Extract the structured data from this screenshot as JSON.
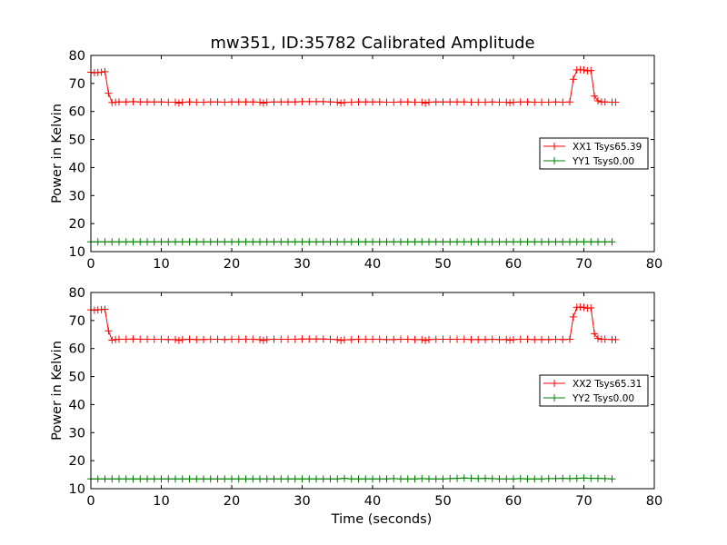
{
  "figure": {
    "title": "mw351, ID:35782 Calibrated Amplitude",
    "background": "#ffffff"
  },
  "chart_data": [
    {
      "type": "line",
      "title": "mw351, ID:35782 Calibrated Amplitude",
      "xlabel": "",
      "ylabel": "Power in Kelvin",
      "xlim": [
        0,
        80
      ],
      "ylim": [
        10,
        80
      ],
      "xticks": [
        0,
        10,
        20,
        30,
        40,
        50,
        60,
        70,
        80
      ],
      "yticks": [
        10,
        20,
        30,
        40,
        50,
        60,
        70,
        80
      ],
      "xtick_labels": [
        "0",
        "10",
        "20",
        "30",
        "40",
        "50",
        "60",
        "70",
        "80"
      ],
      "ytick_labels": [
        "10",
        "20",
        "30",
        "40",
        "50",
        "60",
        "70",
        "80"
      ],
      "grid": false,
      "marker": "+",
      "legend_position": "center-right",
      "series": [
        {
          "name": "XX1 Tsys65.39",
          "color": "#ff0000",
          "x": [
            0,
            0.5,
            1,
            1.5,
            2,
            2.5,
            3,
            3.5,
            4,
            5,
            6,
            7,
            8,
            9,
            10,
            11,
            12,
            12.5,
            13,
            14,
            15,
            16,
            17,
            18,
            19,
            20,
            21,
            22,
            23,
            24,
            24.5,
            25,
            26,
            27,
            28,
            29,
            30,
            31,
            32,
            33,
            34,
            35,
            35.5,
            36,
            37,
            38,
            39,
            40,
            41,
            42,
            43,
            44,
            45,
            46,
            47,
            47.5,
            48,
            49,
            50,
            51,
            52,
            53,
            54,
            55,
            56,
            57,
            58,
            59,
            59.5,
            60,
            61,
            62,
            63,
            64,
            65,
            66,
            67,
            68,
            68.5,
            69,
            69.5,
            70,
            70.5,
            71,
            71.5,
            72,
            72.5,
            73,
            74,
            74.5
          ],
          "y": [
            74,
            73.8,
            73.9,
            74,
            74.2,
            66.5,
            63.2,
            63.3,
            63.4,
            63.4,
            63.5,
            63.4,
            63.4,
            63.4,
            63.4,
            63.3,
            63.3,
            63.0,
            63.3,
            63.4,
            63.3,
            63.3,
            63.4,
            63.4,
            63.3,
            63.4,
            63.4,
            63.4,
            63.4,
            63.3,
            63.0,
            63.3,
            63.4,
            63.4,
            63.4,
            63.4,
            63.5,
            63.5,
            63.5,
            63.5,
            63.4,
            63.3,
            63.0,
            63.2,
            63.3,
            63.4,
            63.4,
            63.4,
            63.4,
            63.3,
            63.3,
            63.4,
            63.4,
            63.3,
            63.3,
            63.0,
            63.3,
            63.4,
            63.4,
            63.4,
            63.4,
            63.4,
            63.3,
            63.3,
            63.3,
            63.4,
            63.3,
            63.3,
            63.1,
            63.3,
            63.4,
            63.4,
            63.3,
            63.3,
            63.3,
            63.4,
            63.3,
            63.4,
            71.5,
            74.8,
            74.9,
            74.8,
            74.5,
            74.6,
            65.5,
            63.8,
            63.4,
            63.4,
            63.3,
            63.3
          ]
        },
        {
          "name": "YY1 Tsys0.00",
          "color": "#008000",
          "x": [
            0,
            1,
            2,
            3,
            4,
            5,
            6,
            7,
            8,
            9,
            10,
            11,
            12,
            13,
            14,
            15,
            16,
            17,
            18,
            19,
            20,
            21,
            22,
            23,
            24,
            25,
            26,
            27,
            28,
            29,
            30,
            31,
            32,
            33,
            34,
            35,
            36,
            37,
            38,
            39,
            40,
            41,
            42,
            43,
            44,
            45,
            46,
            47,
            48,
            49,
            50,
            51,
            52,
            53,
            54,
            55,
            56,
            57,
            58,
            59,
            60,
            61,
            62,
            63,
            64,
            65,
            66,
            67,
            68,
            69,
            70,
            71,
            72,
            73,
            74
          ],
          "y": [
            13.5,
            13.5,
            13.5,
            13.5,
            13.5,
            13.5,
            13.5,
            13.5,
            13.5,
            13.5,
            13.5,
            13.5,
            13.5,
            13.5,
            13.5,
            13.5,
            13.5,
            13.5,
            13.5,
            13.5,
            13.5,
            13.5,
            13.5,
            13.5,
            13.5,
            13.5,
            13.5,
            13.5,
            13.5,
            13.5,
            13.5,
            13.5,
            13.5,
            13.5,
            13.5,
            13.5,
            13.5,
            13.5,
            13.5,
            13.5,
            13.5,
            13.5,
            13.5,
            13.5,
            13.5,
            13.5,
            13.5,
            13.5,
            13.5,
            13.5,
            13.5,
            13.5,
            13.5,
            13.5,
            13.5,
            13.5,
            13.5,
            13.5,
            13.5,
            13.5,
            13.5,
            13.5,
            13.5,
            13.5,
            13.5,
            13.5,
            13.5,
            13.5,
            13.5,
            13.5,
            13.5,
            13.5,
            13.5,
            13.5,
            13.5
          ]
        }
      ]
    },
    {
      "type": "line",
      "title": "",
      "xlabel": "Time (seconds)",
      "ylabel": "Power in Kelvin",
      "xlim": [
        0,
        80
      ],
      "ylim": [
        10,
        80
      ],
      "xticks": [
        0,
        10,
        20,
        30,
        40,
        50,
        60,
        70,
        80
      ],
      "yticks": [
        10,
        20,
        30,
        40,
        50,
        60,
        70,
        80
      ],
      "xtick_labels": [
        "0",
        "10",
        "20",
        "30",
        "40",
        "50",
        "60",
        "70",
        "80"
      ],
      "ytick_labels": [
        "10",
        "20",
        "30",
        "40",
        "50",
        "60",
        "70",
        "80"
      ],
      "grid": false,
      "marker": "+",
      "legend_position": "center-right",
      "series": [
        {
          "name": "XX2 Tsys65.31",
          "color": "#ff0000",
          "x": [
            0,
            0.5,
            1,
            1.5,
            2,
            2.5,
            3,
            3.5,
            4,
            5,
            6,
            7,
            8,
            9,
            10,
            11,
            12,
            12.5,
            13,
            14,
            15,
            16,
            17,
            18,
            19,
            20,
            21,
            22,
            23,
            24,
            24.5,
            25,
            26,
            27,
            28,
            29,
            30,
            31,
            32,
            33,
            34,
            35,
            35.5,
            36,
            37,
            38,
            39,
            40,
            41,
            42,
            43,
            44,
            45,
            46,
            47,
            47.5,
            48,
            49,
            50,
            51,
            52,
            53,
            54,
            55,
            56,
            57,
            58,
            59,
            59.5,
            60,
            61,
            62,
            63,
            64,
            65,
            66,
            67,
            68,
            68.5,
            69,
            69.5,
            70,
            70.5,
            71,
            71.5,
            72,
            72.5,
            73,
            74,
            74.5
          ],
          "y": [
            73.8,
            73.7,
            73.8,
            73.9,
            74.0,
            66.3,
            63.0,
            63.2,
            63.3,
            63.3,
            63.4,
            63.3,
            63.3,
            63.3,
            63.3,
            63.2,
            63.2,
            62.9,
            63.2,
            63.3,
            63.2,
            63.2,
            63.3,
            63.3,
            63.2,
            63.3,
            63.3,
            63.3,
            63.3,
            63.2,
            62.9,
            63.2,
            63.3,
            63.3,
            63.3,
            63.3,
            63.4,
            63.4,
            63.4,
            63.4,
            63.3,
            63.2,
            62.9,
            63.1,
            63.2,
            63.3,
            63.3,
            63.3,
            63.3,
            63.2,
            63.2,
            63.3,
            63.3,
            63.2,
            63.2,
            62.9,
            63.2,
            63.3,
            63.3,
            63.3,
            63.3,
            63.3,
            63.2,
            63.2,
            63.2,
            63.3,
            63.2,
            63.2,
            63.0,
            63.2,
            63.3,
            63.3,
            63.2,
            63.2,
            63.2,
            63.3,
            63.2,
            63.3,
            71.3,
            74.7,
            74.8,
            74.7,
            74.4,
            74.5,
            65.3,
            63.6,
            63.3,
            63.3,
            63.2,
            63.2
          ]
        },
        {
          "name": "YY2 Tsys0.00",
          "color": "#008000",
          "x": [
            0,
            1,
            2,
            3,
            4,
            5,
            6,
            7,
            8,
            9,
            10,
            11,
            12,
            13,
            14,
            15,
            16,
            17,
            18,
            19,
            20,
            21,
            22,
            23,
            24,
            25,
            26,
            27,
            28,
            29,
            30,
            31,
            32,
            33,
            34,
            35,
            36,
            37,
            38,
            39,
            40,
            41,
            42,
            43,
            44,
            45,
            46,
            47,
            48,
            49,
            50,
            51,
            52,
            53,
            54,
            55,
            56,
            57,
            58,
            59,
            60,
            61,
            62,
            63,
            64,
            65,
            66,
            67,
            68,
            69,
            70,
            71,
            72,
            73,
            74
          ],
          "y": [
            13.5,
            13.5,
            13.5,
            13.5,
            13.5,
            13.5,
            13.5,
            13.5,
            13.5,
            13.5,
            13.5,
            13.5,
            13.5,
            13.5,
            13.5,
            13.5,
            13.5,
            13.5,
            13.5,
            13.5,
            13.5,
            13.5,
            13.5,
            13.5,
            13.5,
            13.5,
            13.5,
            13.5,
            13.5,
            13.5,
            13.5,
            13.5,
            13.5,
            13.5,
            13.5,
            13.5,
            13.7,
            13.5,
            13.5,
            13.5,
            13.5,
            13.5,
            13.5,
            13.6,
            13.5,
            13.5,
            13.5,
            13.6,
            13.5,
            13.5,
            13.5,
            13.6,
            13.7,
            13.8,
            13.7,
            13.6,
            13.7,
            13.6,
            13.5,
            13.5,
            13.5,
            13.6,
            13.5,
            13.5,
            13.5,
            13.6,
            13.6,
            13.7,
            13.6,
            13.7,
            13.8,
            13.7,
            13.7,
            13.6,
            13.5
          ]
        }
      ]
    }
  ]
}
